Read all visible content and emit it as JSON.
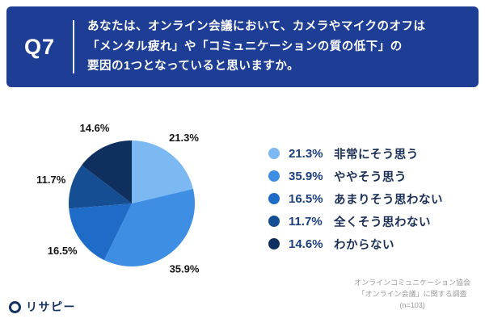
{
  "header": {
    "question_number": "Q7",
    "question_lines": [
      "あなたは、オンライン会議において、カメラやマイクのオフは",
      "「メンタル疲れ」や「コミュニケーションの質の低下」の",
      "要因の1つとなっていると思いますか。"
    ]
  },
  "chart_data": {
    "type": "pie",
    "categories": [
      "非常にそう思う",
      "ややそう思う",
      "あまりそう思わない",
      "全くそう思わない",
      "わからない"
    ],
    "values": [
      21.3,
      35.9,
      16.5,
      11.7,
      14.6
    ],
    "labels": [
      "21.3%",
      "35.9%",
      "16.5%",
      "11.7%",
      "14.6%"
    ],
    "colors": [
      "#7CB9F2",
      "#3E8EE4",
      "#1E6CC8",
      "#164E94",
      "#0F2F5F"
    ],
    "unit": "%",
    "start_angle_deg": 0,
    "direction": "clockwise",
    "legend_position": "right"
  },
  "source": {
    "lines": [
      "オンラインコミュニケーション協会",
      "「オンライン会議」に関する調査",
      "(n=103)"
    ]
  },
  "logo": {
    "text": "リサピー"
  },
  "colors": {
    "header_bg": "#1E3E96",
    "header_text": "#FFFFFF",
    "legend_pct_text": "#1C3F7E",
    "legend_label_text": "#1C2F55",
    "source_text": "#999999"
  }
}
